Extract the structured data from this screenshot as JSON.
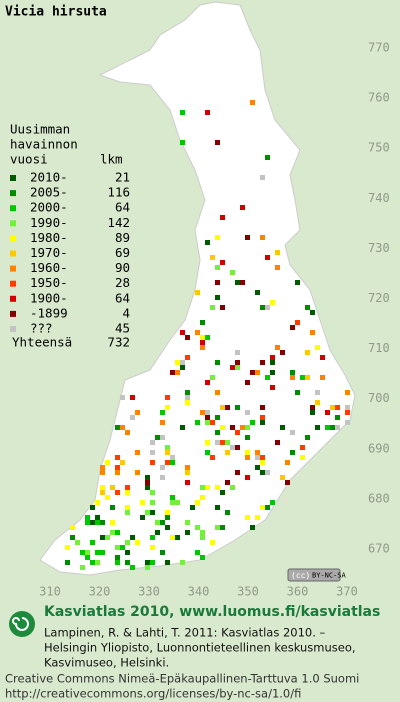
{
  "title": "Vicia hirsuta",
  "legend": {
    "heading": [
      "Uusimman",
      "havainnon"
    ],
    "column_year": "vuosi",
    "column_count": "lkm",
    "items": [
      {
        "label": "2010-",
        "count": 21,
        "color": "#005a00"
      },
      {
        "label": "2005-",
        "count": 116,
        "color": "#008c00"
      },
      {
        "label": "2000-",
        "count": 64,
        "color": "#00c800"
      },
      {
        "label": "1990-",
        "count": 142,
        "color": "#73f03c"
      },
      {
        "label": "1980-",
        "count": 89,
        "color": "#ffff00"
      },
      {
        "label": "1970-",
        "count": 69,
        "color": "#ffc800"
      },
      {
        "label": "1960-",
        "count": 90,
        "color": "#ff8200"
      },
      {
        "label": "1950-",
        "count": 28,
        "color": "#ff3c00"
      },
      {
        "label": "1900-",
        "count": 64,
        "color": "#d20000"
      },
      {
        "label": "-1899",
        "count": 4,
        "color": "#820000"
      },
      {
        "label": "???",
        "count": 45,
        "color": "#c3c3c3"
      }
    ],
    "total_label": "Yhteensä",
    "total": 732
  },
  "grid": {
    "north_ticks": [
      770,
      760,
      750,
      740,
      730,
      720,
      710,
      700,
      690,
      680,
      670
    ],
    "east_ticks": [
      310,
      320,
      330,
      340,
      350,
      360,
      370
    ]
  },
  "license_badge": "BY-NC-SA",
  "footer": {
    "site": "Kasviatlas 2010, www.luomus.fi/kasviatlas",
    "citation": [
      "Lampinen, R. & Lahti, T. 2011: Kasviatlas 2010. –",
      "Helsingin Yliopisto, Luonnontieteellinen keskusmuseo,",
      "Kasvimuseo, Helsinki."
    ],
    "license": [
      "Creative Commons Nimeä-Epäkaupallinen-Tarttuva 1.0 Suomi",
      "http://creativecommons.org/licenses/by-nc-sa/1.0/fi"
    ]
  }
}
